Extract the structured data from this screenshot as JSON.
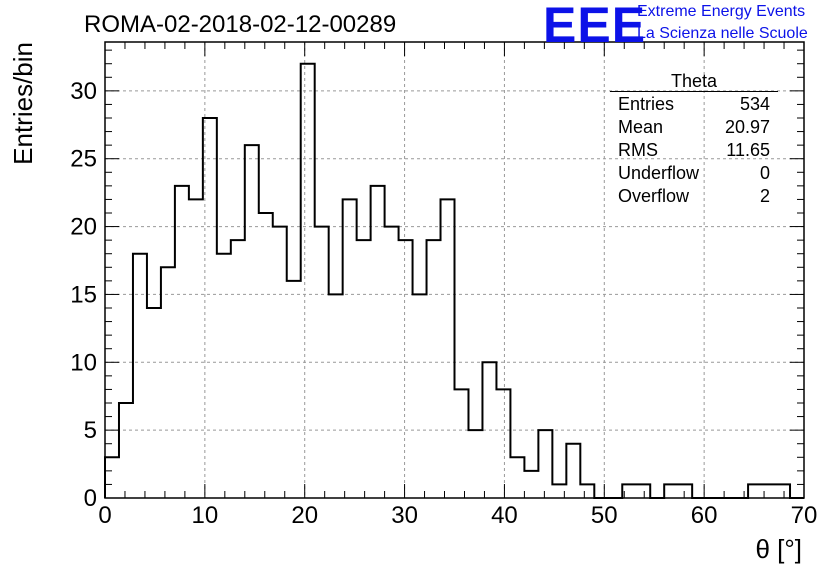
{
  "header": {
    "title": "ROMA-02-2018-02-12-00289",
    "logo": "EEE",
    "logo_line1": "Extreme Energy Events",
    "logo_line2": "La Scienza nelle Scuole",
    "logo_color": "#0c12e8"
  },
  "stats": {
    "title": "Theta",
    "rows": [
      {
        "name": "Entries",
        "value": "534"
      },
      {
        "name": "Mean",
        "value": "20.97"
      },
      {
        "name": "RMS",
        "value": "11.65"
      },
      {
        "name": "Underflow",
        "value": "0"
      },
      {
        "name": "Overflow",
        "value": "2"
      }
    ]
  },
  "chart_data": {
    "type": "histogram",
    "title": "ROMA-02-2018-02-12-00289",
    "xlabel": "θ [°]",
    "ylabel": "Entries/bin",
    "xlim": [
      0,
      70
    ],
    "ylim": [
      0,
      33.6
    ],
    "bin_width": 1.4,
    "grid": true,
    "x_ticks": [
      0,
      10,
      20,
      30,
      40,
      50,
      60,
      70
    ],
    "y_ticks": [
      0,
      5,
      10,
      15,
      20,
      25,
      30
    ],
    "bin_edges": [
      0,
      1.4,
      2.8,
      4.2,
      5.6,
      7.0,
      8.4,
      9.8,
      11.2,
      12.6,
      14.0,
      15.4,
      16.8,
      18.2,
      19.6,
      21.0,
      22.4,
      23.8,
      25.2,
      26.6,
      28.0,
      29.4,
      30.8,
      32.2,
      33.6,
      35.0,
      36.4,
      37.8,
      39.2,
      40.6,
      42.0,
      43.4,
      44.8,
      46.2,
      47.6,
      49.0,
      50.4,
      51.8,
      53.2,
      54.6,
      56.0,
      57.4,
      58.8,
      60.2,
      61.6,
      63.0,
      64.4,
      65.8,
      67.2,
      68.6,
      70.0
    ],
    "counts": [
      3,
      7,
      18,
      14,
      17,
      23,
      22,
      28,
      18,
      19,
      26,
      21,
      20,
      16,
      32,
      20,
      15,
      22,
      19,
      23,
      20,
      19,
      15,
      19,
      22,
      8,
      5,
      10,
      8,
      3,
      2,
      5,
      1,
      4,
      1,
      0,
      0,
      1,
      1,
      0,
      1,
      1,
      0,
      0,
      0,
      0,
      1,
      1,
      1,
      0
    ],
    "line_color": "#000000",
    "grid_color": "#999999"
  }
}
